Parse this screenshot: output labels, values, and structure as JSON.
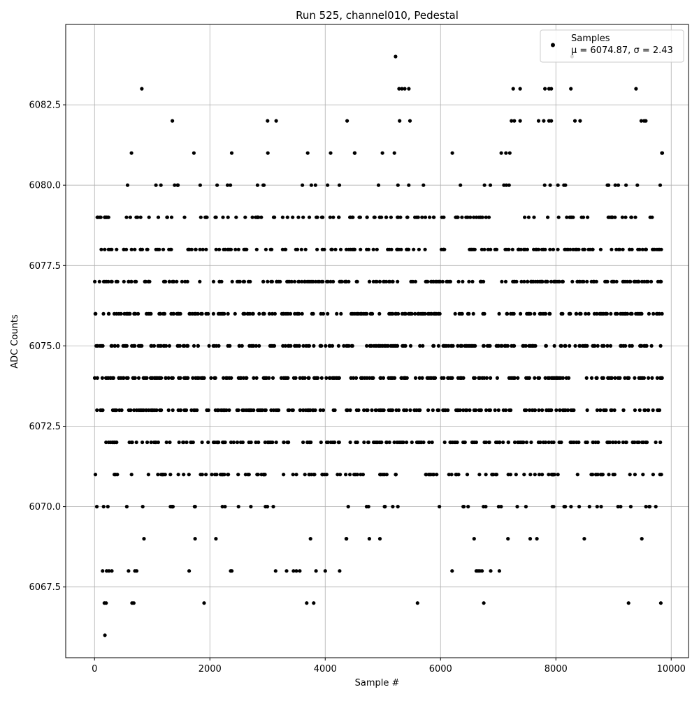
{
  "chart_data": {
    "type": "scatter",
    "title": "Run 525, channel010, Pedestal",
    "xlabel": "Sample #",
    "ylabel": "ADC Counts",
    "xlim": [
      -500,
      10300
    ],
    "ylim": [
      6065.3,
      6085.0
    ],
    "xticks": [
      0,
      2000,
      4000,
      6000,
      8000,
      10000
    ],
    "xtick_labels": [
      "0",
      "2000",
      "4000",
      "6000",
      "8000",
      "10000"
    ],
    "yticks": [
      6067.5,
      6070.0,
      6072.5,
      6075.0,
      6077.5,
      6080.0,
      6082.5
    ],
    "ytick_labels": [
      "6067.5",
      "6070.0",
      "6072.5",
      "6075.0",
      "6077.5",
      "6080.0",
      "6082.5"
    ],
    "grid": true,
    "legend_position": "top-right",
    "marker_color": "#000000",
    "series": [
      {
        "name": "Samples",
        "x_range": [
          0,
          9850
        ],
        "y_levels": [
          6066,
          6067,
          6068,
          6069,
          6070,
          6071,
          6072,
          6073,
          6074,
          6075,
          6076,
          6077,
          6078,
          6079,
          6080,
          6081,
          6082,
          6083,
          6084
        ],
        "points": [
          [
            180,
            6066
          ],
          [
            170,
            6067
          ],
          [
            200,
            6067
          ],
          [
            650,
            6067
          ],
          [
            680,
            6067
          ],
          [
            1900,
            6067
          ],
          [
            3680,
            6067
          ],
          [
            3800,
            6067
          ],
          [
            5600,
            6067
          ],
          [
            6750,
            6067
          ],
          [
            9260,
            6067
          ],
          [
            9820,
            6067
          ],
          [
            140,
            6068
          ],
          [
            210,
            6068
          ],
          [
            250,
            6068
          ],
          [
            300,
            6068
          ],
          [
            590,
            6068
          ],
          [
            700,
            6068
          ],
          [
            730,
            6068
          ],
          [
            1640,
            6068
          ],
          [
            2360,
            6068
          ],
          [
            2380,
            6068
          ],
          [
            3140,
            6068
          ],
          [
            3330,
            6068
          ],
          [
            3450,
            6068
          ],
          [
            3500,
            6068
          ],
          [
            3560,
            6068
          ],
          [
            3840,
            6068
          ],
          [
            4000,
            6068
          ],
          [
            4250,
            6068
          ],
          [
            6200,
            6068
          ],
          [
            6620,
            6068
          ],
          [
            6650,
            6068
          ],
          [
            6680,
            6068
          ],
          [
            6720,
            6068
          ],
          [
            6870,
            6068
          ],
          [
            7020,
            6068
          ],
          [
            820,
            6083
          ],
          [
            5280,
            6083
          ],
          [
            5330,
            6083
          ],
          [
            5380,
            6083
          ],
          [
            5450,
            6083
          ],
          [
            7260,
            6083
          ],
          [
            7380,
            6083
          ],
          [
            7810,
            6083
          ],
          [
            7880,
            6083
          ],
          [
            7920,
            6083
          ],
          [
            8260,
            6083
          ],
          [
            9390,
            6083
          ],
          [
            5220,
            6084
          ],
          [
            8280,
            6084
          ],
          [
            1350,
            6082
          ],
          [
            3000,
            6082
          ],
          [
            3150,
            6082
          ],
          [
            4380,
            6082
          ],
          [
            5290,
            6082
          ],
          [
            5470,
            6082
          ],
          [
            7230,
            6082
          ],
          [
            7280,
            6082
          ],
          [
            7380,
            6082
          ],
          [
            7700,
            6082
          ],
          [
            7790,
            6082
          ],
          [
            7880,
            6082
          ],
          [
            7920,
            6082
          ],
          [
            8330,
            6082
          ],
          [
            8420,
            6082
          ],
          [
            9480,
            6082
          ],
          [
            9530,
            6082
          ],
          [
            9560,
            6082
          ]
        ],
        "legend_stats": "μ = 6074.87, σ = 2.43"
      }
    ]
  }
}
